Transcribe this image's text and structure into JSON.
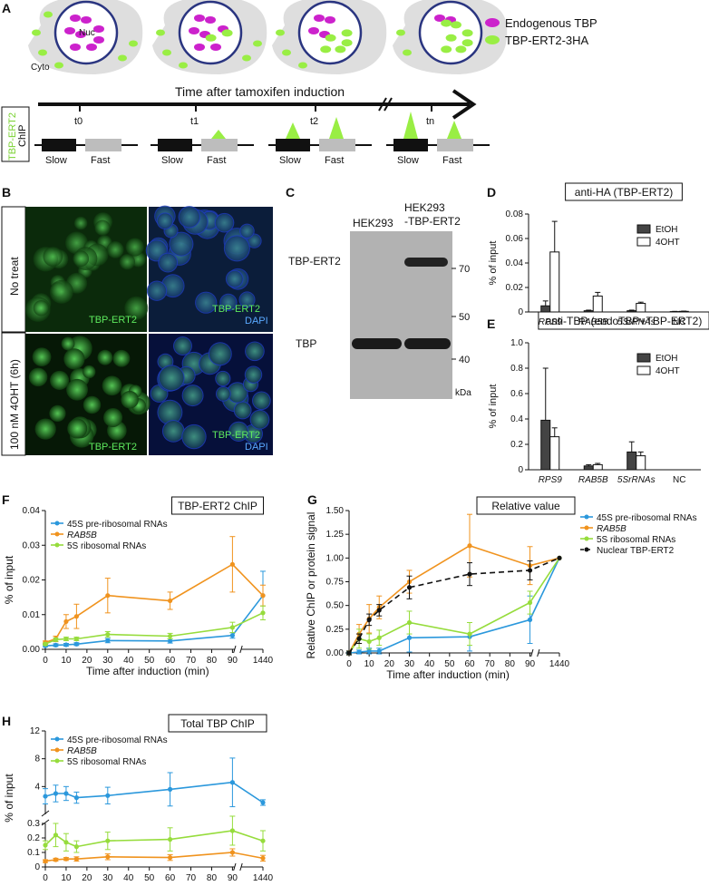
{
  "panel_letters": [
    "A",
    "B",
    "C",
    "D",
    "E",
    "F",
    "G",
    "H"
  ],
  "panel_a": {
    "legend": [
      "Endogenous TBP",
      "TBP-ERT2-3HA"
    ],
    "cell_labels": {
      "nuc": "Nuc",
      "cyto": "Cyto"
    },
    "timeline_title": "Time after tamoxifen induction",
    "timepoints": [
      "t0",
      "t1",
      "t2",
      "tn"
    ],
    "chip_label_top": "TBP-ERT2",
    "chip_label_bottom": "ChIP",
    "gene_labels": [
      "Slow",
      "Fast"
    ],
    "colors": {
      "endogenous": "#cc22cc",
      "ert2": "#99ee44",
      "cell": "#dedede",
      "nucleus_border": "#2a3580"
    }
  },
  "panel_b": {
    "row_labels": [
      "No treat",
      "100 nM 4OHT (6h)"
    ],
    "image_labels": {
      "green": "TBP-ERT2",
      "merge_green": "TBP-ERT2",
      "merge_blue": "DAPI"
    }
  },
  "panel_c": {
    "lanes": [
      "HEK293",
      "HEK293",
      "-TBP-ERT2"
    ],
    "band_labels": [
      "TBP-ERT2",
      "TBP"
    ],
    "markers": [
      "70",
      "50",
      "40"
    ],
    "unit": "kDa"
  },
  "panel_d": {
    "chart_data": {
      "type": "bar",
      "title": "anti-HA (TBP-ERT2)",
      "categories": [
        "RPS9",
        "RAB5B",
        "5SrRNAs",
        "NC"
      ],
      "series": [
        {
          "name": "EtOH",
          "values": [
            0.005,
            0.001,
            0.001,
            0.0003
          ],
          "errors": [
            0.004,
            0.0005,
            0.0005,
            0.0002
          ]
        },
        {
          "name": "4OHT",
          "values": [
            0.049,
            0.013,
            0.007,
            0.0005
          ],
          "errors": [
            0.025,
            0.003,
            0.001,
            0.0002
          ]
        }
      ],
      "ylabel": "% of input",
      "ylim": [
        0,
        0.08
      ],
      "yticks": [
        "0",
        "0.02",
        "0.04",
        "0.06",
        "0.08"
      ]
    }
  },
  "panel_e": {
    "chart_data": {
      "type": "bar",
      "title": "anti-TBP (endoTBP+TBP-ERT2)",
      "categories": [
        "RPS9",
        "RAB5B",
        "5SrRNAs",
        "NC"
      ],
      "series": [
        {
          "name": "EtOH",
          "values": [
            0.39,
            0.03,
            0.14,
            0.0
          ],
          "errors": [
            0.41,
            0.01,
            0.08,
            0.0
          ]
        },
        {
          "name": "4OHT",
          "values": [
            0.26,
            0.04,
            0.11,
            0.0
          ],
          "errors": [
            0.07,
            0.01,
            0.03,
            0.0
          ]
        }
      ],
      "ylabel": "% of input",
      "ylim": [
        0,
        1.0
      ],
      "yticks": [
        "0",
        "0.2",
        "0.4",
        "0.6",
        "0.8",
        "1.0"
      ]
    }
  },
  "panel_f": {
    "chart_data": {
      "type": "line",
      "title": "TBP-ERT2 ChIP",
      "x": [
        0,
        5,
        10,
        15,
        30,
        60,
        90,
        1440
      ],
      "xticks": [
        "0",
        "10",
        "20",
        "30",
        "40",
        "50",
        "60",
        "70",
        "80",
        "90",
        "1440"
      ],
      "series": [
        {
          "name": "45S pre-ribosomal RNAs",
          "color": "#2b98dc",
          "values": [
            0.001,
            0.0012,
            0.0013,
            0.0015,
            0.0025,
            0.0024,
            0.004,
            0.0155
          ],
          "errors": [
            0.0003,
            0.0004,
            0.0004,
            0.0004,
            0.0006,
            0.0006,
            0.0008,
            0.007
          ]
        },
        {
          "name": "RAB5B",
          "color": "#f0931e",
          "values": [
            0.002,
            0.003,
            0.008,
            0.0095,
            0.0155,
            0.014,
            0.0245,
            0.0155
          ],
          "errors": [
            0.0004,
            0.0008,
            0.002,
            0.0035,
            0.005,
            0.0025,
            0.008,
            0.003
          ]
        },
        {
          "name": "5S ribosomal RNAs",
          "color": "#96dc3c",
          "values": [
            0.0015,
            0.0028,
            0.003,
            0.003,
            0.0043,
            0.0038,
            0.0063,
            0.0105
          ],
          "errors": [
            0.0003,
            0.0005,
            0.0005,
            0.0005,
            0.0008,
            0.0008,
            0.0015,
            0.002
          ]
        }
      ],
      "xlabel": "Time after induction (min)",
      "ylabel": "% of input",
      "ylim": [
        0,
        0.04
      ],
      "yticks": [
        "0.00",
        "0.01",
        "0.02",
        "0.03",
        "0.04"
      ]
    }
  },
  "panel_g": {
    "chart_data": {
      "type": "line",
      "title": "Relative value",
      "x": [
        0,
        5,
        10,
        15,
        30,
        60,
        90,
        1440
      ],
      "xticks": [
        "0",
        "10",
        "20",
        "30",
        "40",
        "50",
        "60",
        "70",
        "80",
        "90",
        "1440"
      ],
      "series": [
        {
          "name": "45S pre-ribosomal RNAs",
          "color": "#2b98dc",
          "values": [
            0,
            0.01,
            0.02,
            0.02,
            0.16,
            0.17,
            0.35,
            1.0
          ],
          "errors": [
            0.01,
            0.02,
            0.03,
            0.03,
            0.15,
            0.15,
            0.25,
            0
          ]
        },
        {
          "name": "RAB5B",
          "color": "#f0931e",
          "values": [
            0,
            0.2,
            0.36,
            0.48,
            0.75,
            1.13,
            0.92,
            1.0
          ],
          "errors": [
            0.02,
            0.1,
            0.15,
            0.12,
            0.12,
            0.33,
            0.2,
            0
          ]
        },
        {
          "name": "5S ribosomal RNAs",
          "color": "#96dc3c",
          "values": [
            0,
            0.15,
            0.12,
            0.16,
            0.32,
            0.2,
            0.53,
            1.0
          ],
          "errors": [
            0.02,
            0.1,
            0.08,
            0.08,
            0.12,
            0.12,
            0.12,
            0
          ]
        },
        {
          "name": "Nuclear TBP-ERT2",
          "color": "#111111",
          "dashed": true,
          "values": [
            0,
            0.15,
            0.35,
            0.45,
            0.69,
            0.83,
            0.87,
            1.0
          ],
          "errors": [
            0.02,
            0.05,
            0.06,
            0.06,
            0.12,
            0.12,
            0.1,
            0
          ]
        }
      ],
      "xlabel": "Time after induction (min)",
      "ylabel": "Relative ChIP or protein signal",
      "ylim": [
        0,
        1.5
      ],
      "yticks": [
        "0.00",
        "0.25",
        "0.50",
        "0.75",
        "1.00",
        "1.25",
        "1.50"
      ]
    }
  },
  "panel_h": {
    "chart_data": {
      "type": "line",
      "title": "Total TBP ChIP",
      "x": [
        0,
        5,
        10,
        15,
        30,
        60,
        90,
        1440
      ],
      "xticks": [
        "0",
        "10",
        "20",
        "30",
        "40",
        "50",
        "60",
        "70",
        "80",
        "90",
        "1440"
      ],
      "series": [
        {
          "name": "45S pre-ribosomal RNAs",
          "color": "#2b98dc",
          "values": [
            2.6,
            3.0,
            3.0,
            2.4,
            2.7,
            3.6,
            4.6,
            1.7
          ],
          "errors": [
            1.1,
            1.2,
            1.0,
            0.8,
            1.2,
            2.4,
            3.5,
            0.4
          ]
        },
        {
          "name": "RAB5B",
          "color": "#f0931e",
          "values": [
            0.04,
            0.05,
            0.055,
            0.055,
            0.07,
            0.065,
            0.1,
            0.06
          ],
          "errors": [
            0.01,
            0.01,
            0.01,
            0.015,
            0.02,
            0.02,
            0.025,
            0.02
          ]
        },
        {
          "name": "5S ribosomal RNAs",
          "color": "#96dc3c",
          "values": [
            0.15,
            0.22,
            0.17,
            0.14,
            0.18,
            0.19,
            0.25,
            0.18
          ],
          "errors": [
            0.03,
            0.08,
            0.06,
            0.04,
            0.06,
            0.08,
            0.1,
            0.07
          ]
        }
      ],
      "xlabel": "Time after induction (min)",
      "ylabel": "% of input",
      "yticks_top": [
        "0",
        "4",
        "8",
        "12"
      ],
      "yticks_bottom": [
        "0",
        "0.1",
        "0.2",
        "0.3"
      ]
    }
  }
}
